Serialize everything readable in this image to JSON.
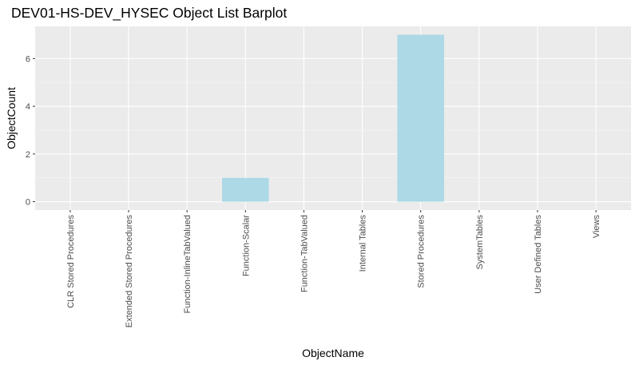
{
  "chart_data": {
    "type": "bar",
    "title": "DEV01-HS-DEV_HYSEC Object List Barplot",
    "xlabel": "ObjectName",
    "ylabel": "ObjectCount",
    "categories": [
      "CLR Stored Procedures",
      "Extended Stored Procedures",
      "Function-InlineTabValued",
      "Function-Scalar",
      "Function-TabValued",
      "Internal Tables",
      "Stored Procedures",
      "SystemTables",
      "User Defined Tables",
      "Views"
    ],
    "values": [
      0,
      0,
      0,
      1,
      0,
      0,
      7,
      0,
      0,
      0
    ],
    "ylim": [
      -0.35,
      7.35
    ],
    "yticks": [
      0,
      2,
      4,
      6
    ],
    "grid": true,
    "legend": "none",
    "colors": {
      "bar": "#add8e6",
      "panel": "#ebebeb",
      "grid_major": "#ffffff",
      "grid_minor": "#f5f5f5",
      "tick_text": "#4d4d4d",
      "tick_mark": "#333333"
    }
  }
}
